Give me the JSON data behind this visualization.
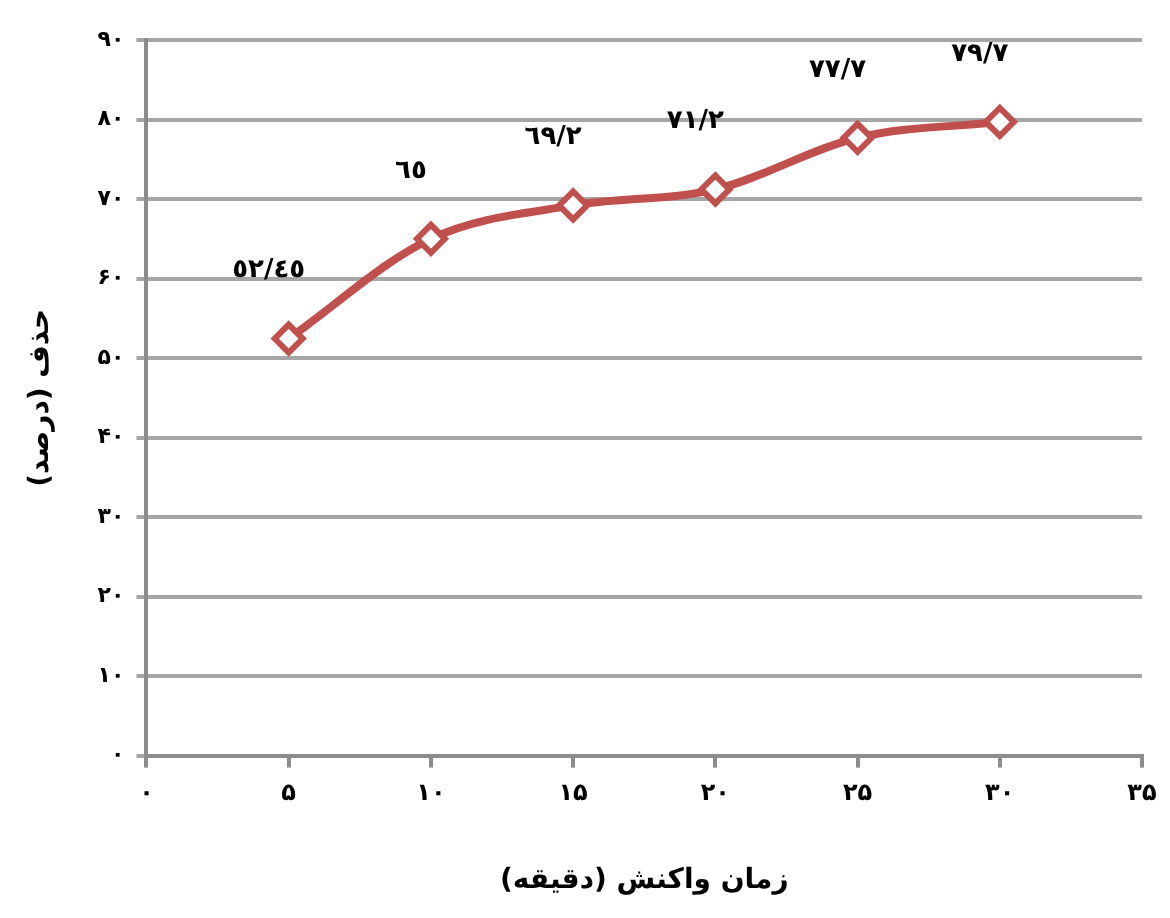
{
  "chart_data": {
    "type": "line",
    "xlabel": "زمان واکنش (دقیقه)",
    "ylabel": "حذف (درصد)",
    "x": [
      5,
      10,
      15,
      20,
      25,
      30
    ],
    "series": [
      {
        "color": "#c0504d",
        "values": [
          52.45,
          65,
          69.2,
          71.2,
          77.7,
          79.7
        ],
        "value_labels": [
          "٥٢/٤٥",
          "٦٥",
          "٦٩/٢",
          "٧١/٢",
          "٧٧/٧",
          "٧٩/٧"
        ]
      }
    ],
    "xlim": [
      0,
      35
    ],
    "xticks": [
      {
        "value": 0,
        "label": "۰"
      },
      {
        "value": 5,
        "label": "۵"
      },
      {
        "value": 10,
        "label": "۱۰"
      },
      {
        "value": 15,
        "label": "۱۵"
      },
      {
        "value": 20,
        "label": "۲۰"
      },
      {
        "value": 25,
        "label": "۲۵"
      },
      {
        "value": 30,
        "label": "۳۰"
      },
      {
        "value": 35,
        "label": "۳۵"
      }
    ],
    "ylim": [
      0,
      90
    ],
    "yticks": [
      {
        "value": 0,
        "label": "۰"
      },
      {
        "value": 10,
        "label": "۱۰"
      },
      {
        "value": 20,
        "label": "۲۰"
      },
      {
        "value": 30,
        "label": "۳۰"
      },
      {
        "value": 40,
        "label": "۴۰"
      },
      {
        "value": 50,
        "label": "۵۰"
      },
      {
        "value": 60,
        "label": "۶۰"
      },
      {
        "value": 70,
        "label": "۷۰"
      },
      {
        "value": 80,
        "label": "۸۰"
      },
      {
        "value": 90,
        "label": "۹۰"
      }
    ],
    "grid": "y",
    "legend": false,
    "marker": "diamond",
    "line_style": "solid"
  }
}
